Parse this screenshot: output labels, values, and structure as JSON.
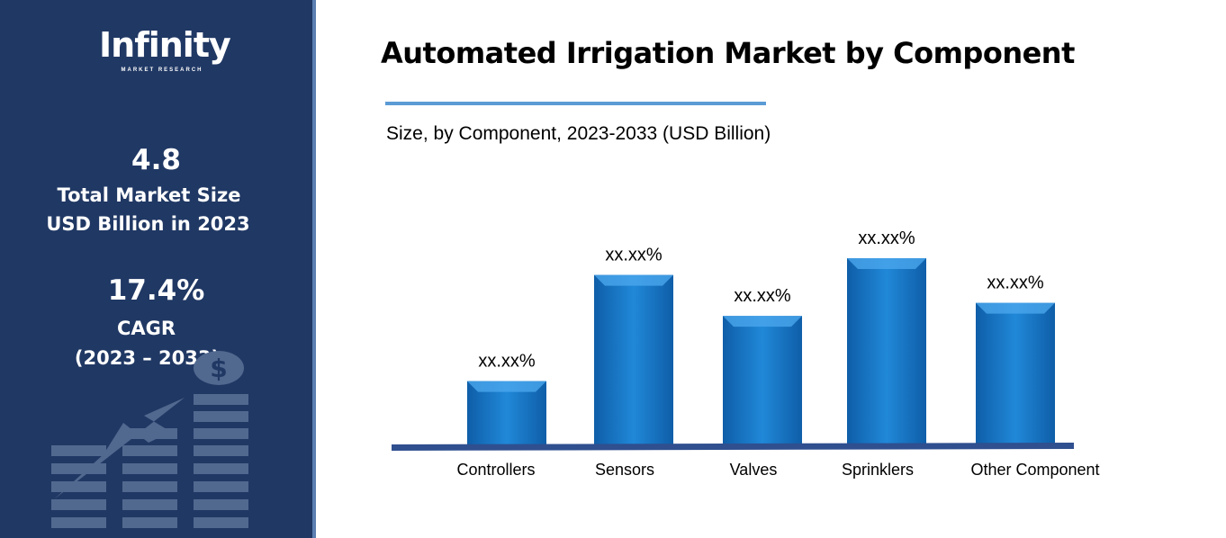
{
  "sidebar": {
    "logo_text": "Infinity",
    "logo_subtext": "MARKET RESEARCH",
    "market_size_value": "4.8",
    "market_size_label_1": "Total Market Size",
    "market_size_label_2": "USD Billion in 2023",
    "cagr_value": "17.4%",
    "cagr_label": "CAGR",
    "cagr_period": "(2023 – 2033)",
    "illustration": "growth-chart-dollar-icon"
  },
  "chart_data": {
    "type": "bar",
    "title": "Automated Irrigation Market by Component",
    "subtitle": "Size, by Component, 2023-2033 (USD Billion)",
    "categories": [
      "Controllers",
      "Sensors",
      "Valves",
      "Sprinklers",
      "Other Component"
    ],
    "values": [
      34,
      91,
      69,
      100,
      76
    ],
    "value_note": "relative bar heights, no axis printed",
    "data_labels": [
      "xx.xx%",
      "xx.xx%",
      "xx.xx%",
      "xx.xx%",
      "xx.xx%"
    ],
    "grid": false,
    "bar_color": "#1f78c8",
    "baseline_color": "#2f4f8f"
  }
}
